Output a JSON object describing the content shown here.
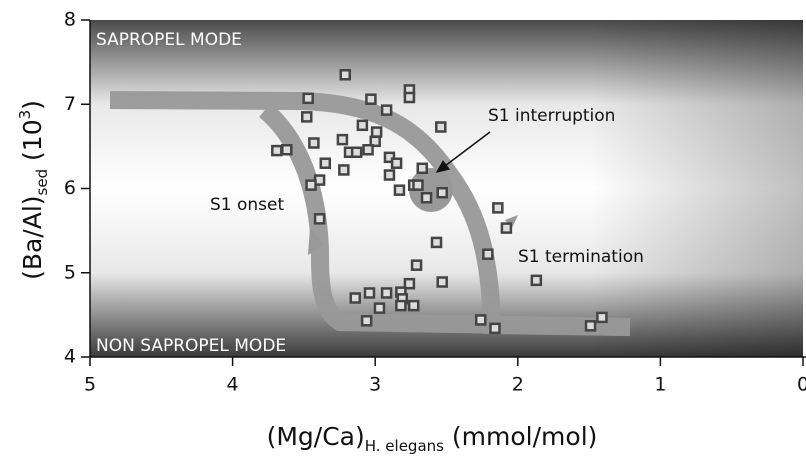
{
  "chart_data": {
    "type": "scatter",
    "modes": [
      "SAPROPEL MODE",
      "NON SAPROPEL MODE"
    ],
    "annotations": [
      "S1 onset",
      "S1 interruption",
      "S1 termination"
    ],
    "x_label": [
      "(Mg/Ca)",
      "H. elegans",
      " (mmol/mol)"
    ],
    "y_label": [
      "(Ba/Al)",
      "sed",
      " (10",
      "3",
      ")"
    ],
    "xlim": [
      5,
      0
    ],
    "ylim": [
      4,
      8
    ],
    "xticks": [
      5,
      4,
      3,
      2,
      1,
      0
    ],
    "yticks": [
      4,
      5,
      6,
      7,
      8
    ],
    "marker_color": "#444444",
    "x": [
      3.21,
      2.76,
      2.76,
      3.47,
      3.03,
      3.48,
      2.92,
      2.54,
      3.09,
      2.99,
      3.0,
      3.43,
      3.23,
      3.05,
      3.18,
      3.13,
      3.69,
      3.62,
      2.9,
      2.85,
      3.35,
      3.22,
      2.67,
      2.9,
      3.39,
      3.45,
      2.73,
      2.7,
      2.83,
      2.53,
      2.64,
      2.14,
      3.39,
      2.08,
      2.57,
      2.21,
      2.71,
      1.87,
      2.53,
      2.76,
      2.92,
      3.04,
      2.82,
      3.14,
      2.81,
      2.82,
      2.73,
      2.97,
      3.06,
      2.26,
      2.16,
      1.49,
      1.41
    ],
    "y": [
      7.35,
      7.17,
      7.08,
      7.07,
      7.06,
      6.85,
      6.93,
      6.73,
      6.75,
      6.67,
      6.56,
      6.54,
      6.58,
      6.46,
      6.43,
      6.43,
      6.45,
      6.46,
      6.37,
      6.3,
      6.3,
      6.22,
      6.24,
      6.16,
      6.1,
      6.04,
      6.04,
      6.04,
      5.98,
      5.95,
      5.89,
      5.77,
      5.64,
      5.53,
      5.36,
      5.22,
      5.09,
      4.91,
      4.89,
      4.87,
      4.76,
      4.76,
      4.77,
      4.7,
      4.69,
      4.61,
      4.61,
      4.58,
      4.43,
      4.44,
      4.34,
      4.37,
      4.47
    ]
  }
}
